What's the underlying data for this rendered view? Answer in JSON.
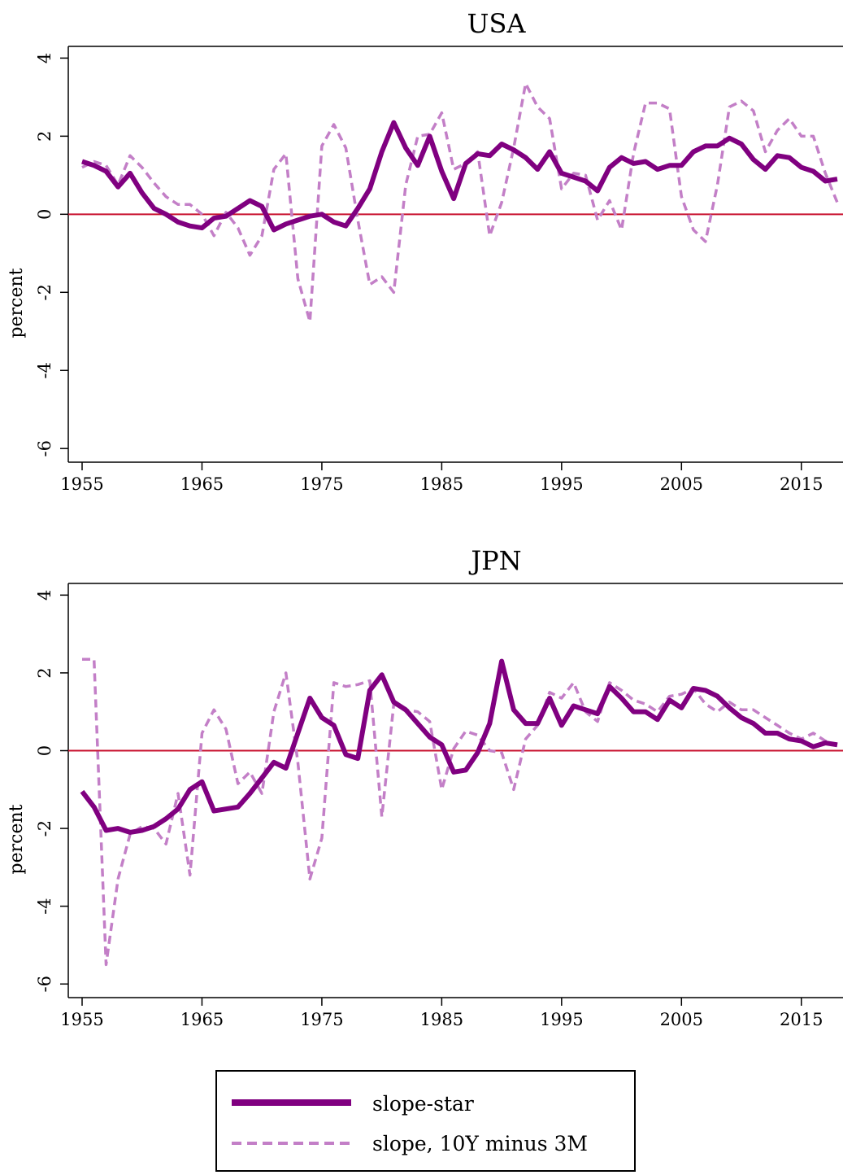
{
  "chart_data": [
    {
      "type": "line",
      "title": "USA",
      "ylabel": "percent",
      "xlabel": "",
      "xlim": [
        1954,
        2018
      ],
      "ylim": [
        -6.35,
        4.3
      ],
      "x_ticks": [
        1955,
        1965,
        1975,
        1985,
        1995,
        2005,
        2015
      ],
      "y_ticks": [
        -6,
        -4,
        -2,
        0,
        2,
        4
      ],
      "reference_line": 0,
      "x": [
        1955,
        1956,
        1957,
        1958,
        1959,
        1960,
        1961,
        1962,
        1963,
        1964,
        1965,
        1966,
        1967,
        1968,
        1969,
        1970,
        1971,
        1972,
        1973,
        1974,
        1975,
        1976,
        1977,
        1978,
        1979,
        1980,
        1981,
        1982,
        1983,
        1984,
        1985,
        1986,
        1987,
        1988,
        1989,
        1990,
        1991,
        1992,
        1993,
        1994,
        1995,
        1996,
        1997,
        1998,
        1999,
        2000,
        2001,
        2002,
        2003,
        2004,
        2005,
        2006,
        2007,
        2008,
        2009,
        2010,
        2011,
        2012,
        2013,
        2014,
        2015,
        2016,
        2017,
        2018
      ],
      "series": [
        {
          "name": "slope-star",
          "style": "solid",
          "values": [
            1.35,
            1.25,
            1.1,
            0.7,
            1.05,
            0.55,
            0.15,
            0.0,
            -0.2,
            -0.3,
            -0.35,
            -0.1,
            -0.05,
            0.15,
            0.35,
            0.2,
            -0.4,
            -0.25,
            -0.15,
            -0.05,
            0.0,
            -0.2,
            -0.3,
            0.15,
            0.65,
            1.6,
            2.35,
            1.7,
            1.25,
            2.0,
            1.1,
            0.4,
            1.3,
            1.55,
            1.5,
            1.8,
            1.65,
            1.45,
            1.15,
            1.6,
            1.05,
            0.95,
            0.85,
            0.6,
            1.2,
            1.45,
            1.3,
            1.35,
            1.15,
            1.25,
            1.25,
            1.6,
            1.75,
            1.75,
            1.95,
            1.8,
            1.4,
            1.15,
            1.5,
            1.45,
            1.2,
            1.1,
            0.85,
            0.9
          ]
        },
        {
          "name": "slope, 10Y minus 3M",
          "style": "dashed",
          "values": [
            1.2,
            1.35,
            1.25,
            0.75,
            1.5,
            1.2,
            0.8,
            0.45,
            0.25,
            0.25,
            0.0,
            -0.55,
            0.05,
            -0.35,
            -1.05,
            -0.55,
            1.15,
            1.55,
            -1.65,
            -2.75,
            1.75,
            2.3,
            1.7,
            -0.15,
            -1.8,
            -1.6,
            -2.0,
            0.75,
            2.0,
            2.05,
            2.6,
            1.15,
            1.3,
            1.6,
            -0.55,
            0.3,
            1.7,
            3.35,
            2.75,
            2.45,
            0.65,
            1.05,
            1.0,
            -0.15,
            0.35,
            -0.4,
            1.55,
            2.85,
            2.85,
            2.7,
            0.45,
            -0.4,
            -0.7,
            0.75,
            2.75,
            2.9,
            2.65,
            1.6,
            2.15,
            2.45,
            2.0,
            2.0,
            1.05,
            0.3
          ]
        }
      ]
    },
    {
      "type": "line",
      "title": "JPN",
      "ylabel": "percent",
      "xlabel": "",
      "xlim": [
        1954,
        2018
      ],
      "ylim": [
        -6.35,
        4.3
      ],
      "x_ticks": [
        1955,
        1965,
        1975,
        1985,
        1995,
        2005,
        2015
      ],
      "y_ticks": [
        -6,
        -4,
        -2,
        0,
        2,
        4
      ],
      "reference_line": 0,
      "x": [
        1955,
        1956,
        1957,
        1958,
        1959,
        1960,
        1961,
        1962,
        1963,
        1964,
        1965,
        1966,
        1967,
        1968,
        1969,
        1970,
        1971,
        1972,
        1973,
        1974,
        1975,
        1976,
        1977,
        1978,
        1979,
        1980,
        1981,
        1982,
        1983,
        1984,
        1985,
        1986,
        1987,
        1988,
        1989,
        1990,
        1991,
        1992,
        1993,
        1994,
        1995,
        1996,
        1997,
        1998,
        1999,
        2000,
        2001,
        2002,
        2003,
        2004,
        2005,
        2006,
        2007,
        2008,
        2009,
        2010,
        2011,
        2012,
        2013,
        2014,
        2015,
        2016,
        2017,
        2018
      ],
      "series": [
        {
          "name": "slope-star",
          "style": "solid",
          "values": [
            -1.05,
            -1.45,
            -2.05,
            -2.0,
            -2.1,
            -2.05,
            -1.95,
            -1.75,
            -1.5,
            -1.0,
            -0.8,
            -1.55,
            -1.5,
            -1.45,
            -1.1,
            -0.7,
            -0.3,
            -0.45,
            0.45,
            1.35,
            0.85,
            0.65,
            -0.1,
            -0.2,
            1.55,
            1.95,
            1.25,
            1.05,
            0.7,
            0.35,
            0.15,
            -0.55,
            -0.5,
            -0.05,
            0.7,
            2.3,
            1.05,
            0.7,
            0.7,
            1.35,
            0.65,
            1.15,
            1.05,
            0.95,
            1.65,
            1.35,
            1.0,
            1.0,
            0.8,
            1.3,
            1.1,
            1.6,
            1.55,
            1.4,
            1.1,
            0.85,
            0.7,
            0.45,
            0.45,
            0.3,
            0.25,
            0.1,
            0.2,
            0.15
          ]
        },
        {
          "name": "slope, 10Y minus 3M",
          "style": "dashed",
          "values": [
            2.35,
            2.35,
            -5.5,
            -3.3,
            -2.15,
            -1.95,
            -2.0,
            -2.4,
            -1.1,
            -3.2,
            0.45,
            1.05,
            0.55,
            -0.85,
            -0.55,
            -1.1,
            1.0,
            2.0,
            -0.3,
            -3.3,
            -2.25,
            1.75,
            1.65,
            1.7,
            1.8,
            -1.7,
            1.2,
            1.05,
            1.0,
            0.75,
            -1.0,
            0.05,
            0.5,
            0.4,
            0.0,
            -0.05,
            -1.0,
            0.3,
            0.65,
            1.5,
            1.35,
            1.75,
            1.0,
            0.75,
            1.75,
            1.55,
            1.3,
            1.2,
            1.0,
            1.4,
            1.45,
            1.6,
            1.2,
            1.0,
            1.25,
            1.05,
            1.05,
            0.85,
            0.65,
            0.45,
            0.3,
            0.45,
            0.25,
            0.15
          ]
        }
      ]
    }
  ],
  "legend": {
    "placement": "bottom-center",
    "items": [
      "slope-star",
      "slope, 10Y minus 3M"
    ]
  },
  "colors": {
    "solid": "#800080",
    "dashed": "#c37fc7",
    "reference": "#c8102e",
    "axis": "#000000"
  }
}
